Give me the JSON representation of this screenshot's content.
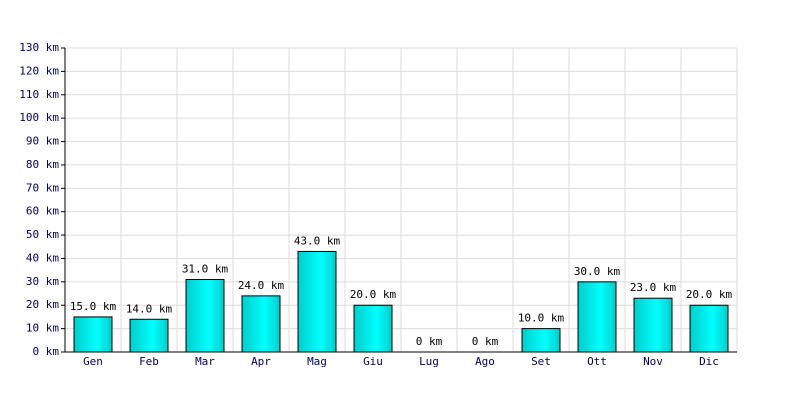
{
  "chart_data": {
    "type": "bar",
    "categories": [
      "Gen",
      "Feb",
      "Mar",
      "Apr",
      "Mag",
      "Giu",
      "Lug",
      "Ago",
      "Set",
      "Ott",
      "Nov",
      "Dic"
    ],
    "values": [
      15,
      14,
      31,
      24,
      43,
      20,
      0,
      0,
      10,
      30,
      23,
      20
    ],
    "value_labels": [
      "15.0 km",
      "14.0 km",
      "31.0 km",
      "24.0 km",
      "43.0 km",
      "20.0 km",
      "0 km",
      "0 km",
      "10.0 km",
      "30.0 km",
      "23.0 km",
      "20.0 km"
    ],
    "color": "#00cccc",
    "ylim": [
      0,
      130
    ],
    "yticks": [
      {
        "value": 0,
        "label": "0 km"
      },
      {
        "value": 10,
        "label": "10 km"
      },
      {
        "value": 20,
        "label": "20 km"
      },
      {
        "value": 30,
        "label": "30 km"
      },
      {
        "value": 40,
        "label": "40 km"
      },
      {
        "value": 50,
        "label": "50 km"
      },
      {
        "value": 60,
        "label": "60 km"
      },
      {
        "value": 70,
        "label": "70 km"
      },
      {
        "value": 80,
        "label": "80 km"
      },
      {
        "value": 90,
        "label": "90 km"
      },
      {
        "value": 100,
        "label": "100 km"
      },
      {
        "value": 110,
        "label": "110 km"
      },
      {
        "value": 120,
        "label": "120 km"
      },
      {
        "value": 130,
        "label": "130 km"
      }
    ],
    "grid": true
  }
}
